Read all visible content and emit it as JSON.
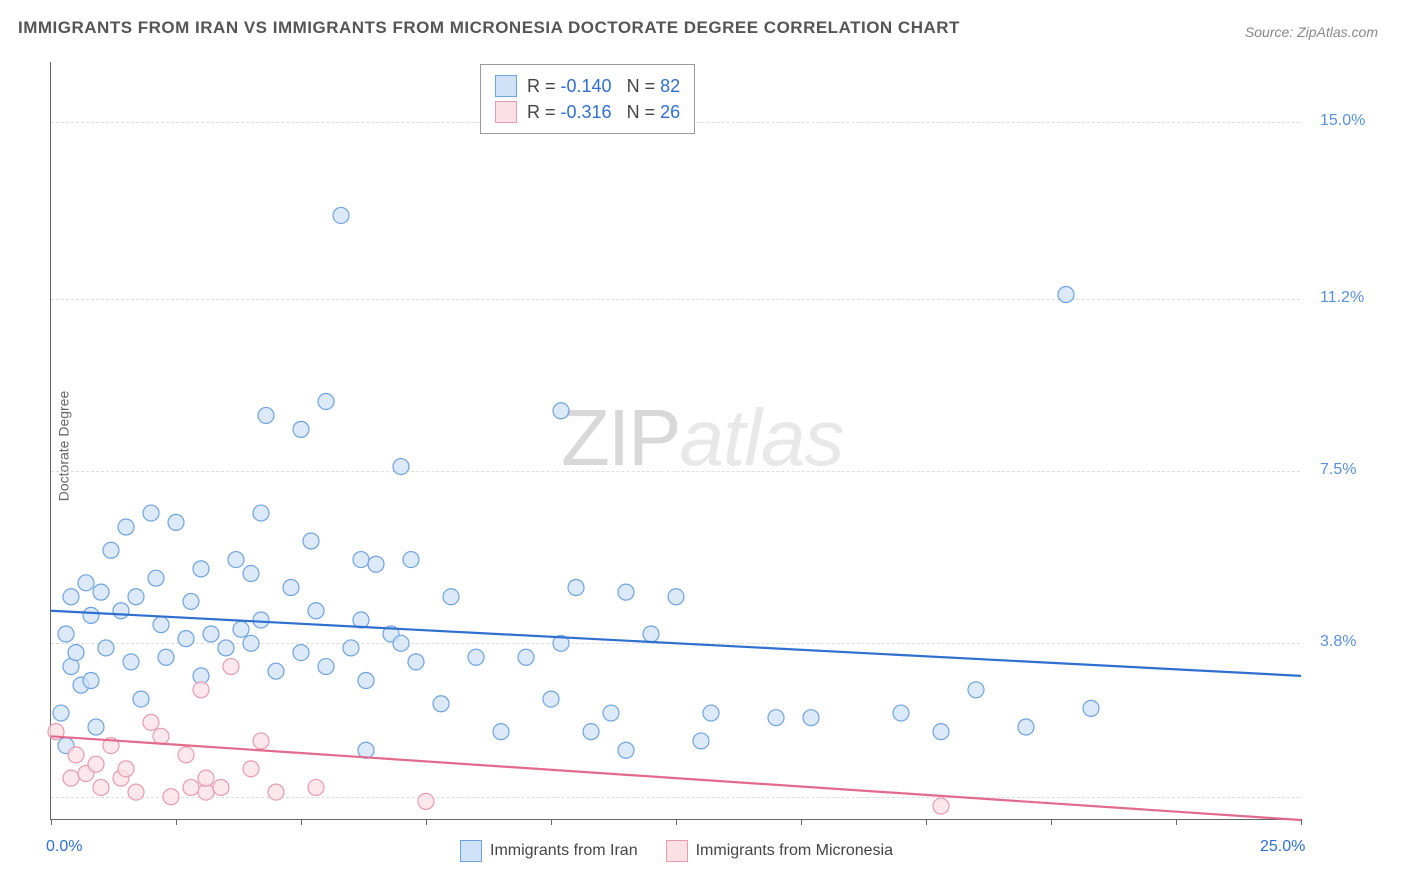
{
  "title": "IMMIGRANTS FROM IRAN VS IMMIGRANTS FROM MICRONESIA DOCTORATE DEGREE CORRELATION CHART",
  "source": "Source: ZipAtlas.com",
  "ylabel": "Doctorate Degree",
  "watermark": {
    "zip": "ZIP",
    "atlas": "atlas"
  },
  "chart": {
    "type": "scatter",
    "xlim": [
      0.0,
      25.0
    ],
    "ylim": [
      0.0,
      16.3
    ],
    "x_axis_labels": [
      {
        "value": 0.0,
        "text": "0.0%",
        "color": "#2f6fd0"
      },
      {
        "value": 25.0,
        "text": "25.0%",
        "color": "#2f6fd0"
      }
    ],
    "y_axis_labels": [
      {
        "value": 3.8,
        "text": "3.8%",
        "color": "#5a8fdc"
      },
      {
        "value": 7.5,
        "text": "7.5%",
        "color": "#5a8fdc"
      },
      {
        "value": 11.2,
        "text": "11.2%",
        "color": "#5a8fdc"
      },
      {
        "value": 15.0,
        "text": "15.0%",
        "color": "#5a8fdc"
      }
    ],
    "y_gridlines": [
      0.5,
      3.8,
      7.5,
      11.2,
      15.0
    ],
    "x_ticks": [
      0.0,
      2.5,
      5.0,
      7.5,
      10.0,
      12.5,
      15.0,
      17.5,
      20.0,
      22.5,
      25.0
    ],
    "background_color": "#ffffff",
    "grid_color": "#dddddd",
    "marker_radius": 8,
    "marker_stroke_width": 1.2,
    "trend_line_width": 2.2,
    "series": [
      {
        "name": "Immigrants from Iran",
        "fill": "#cfe2f7",
        "stroke": "#6fa3e0",
        "line_color": "#2f6fd0",
        "R": "-0.140",
        "N": "82",
        "trend": {
          "x1": 0.0,
          "y1": 4.5,
          "x2": 25.0,
          "y2": 3.1
        },
        "points": [
          [
            0.2,
            2.3
          ],
          [
            0.3,
            1.6
          ],
          [
            0.3,
            4.0
          ],
          [
            0.4,
            3.3
          ],
          [
            0.4,
            4.8
          ],
          [
            0.5,
            3.6
          ],
          [
            0.6,
            2.9
          ],
          [
            0.7,
            5.1
          ],
          [
            0.8,
            4.4
          ],
          [
            0.8,
            3.0
          ],
          [
            0.9,
            2.0
          ],
          [
            1.0,
            4.9
          ],
          [
            1.1,
            3.7
          ],
          [
            1.2,
            5.8
          ],
          [
            1.4,
            4.5
          ],
          [
            1.5,
            6.3
          ],
          [
            1.6,
            3.4
          ],
          [
            1.7,
            4.8
          ],
          [
            1.8,
            2.6
          ],
          [
            2.0,
            6.6
          ],
          [
            2.1,
            5.2
          ],
          [
            2.2,
            4.2
          ],
          [
            2.3,
            3.5
          ],
          [
            2.5,
            6.4
          ],
          [
            2.7,
            3.9
          ],
          [
            2.8,
            4.7
          ],
          [
            3.0,
            5.4
          ],
          [
            3.0,
            3.1
          ],
          [
            3.2,
            4.0
          ],
          [
            3.5,
            3.7
          ],
          [
            3.7,
            5.6
          ],
          [
            3.8,
            4.1
          ],
          [
            4.0,
            3.8
          ],
          [
            4.0,
            5.3
          ],
          [
            4.2,
            4.3
          ],
          [
            4.2,
            6.6
          ],
          [
            4.3,
            8.7
          ],
          [
            4.5,
            3.2
          ],
          [
            4.8,
            5.0
          ],
          [
            5.0,
            8.4
          ],
          [
            5.0,
            3.6
          ],
          [
            5.2,
            6.0
          ],
          [
            5.3,
            4.5
          ],
          [
            5.5,
            9.0
          ],
          [
            5.5,
            3.3
          ],
          [
            5.8,
            13.0
          ],
          [
            6.0,
            3.7
          ],
          [
            6.2,
            4.3
          ],
          [
            6.2,
            5.6
          ],
          [
            6.3,
            3.0
          ],
          [
            6.3,
            1.5
          ],
          [
            6.5,
            5.5
          ],
          [
            6.8,
            4.0
          ],
          [
            7.0,
            7.6
          ],
          [
            7.0,
            3.8
          ],
          [
            7.2,
            5.6
          ],
          [
            7.3,
            3.4
          ],
          [
            7.8,
            2.5
          ],
          [
            8.0,
            4.8
          ],
          [
            8.5,
            3.5
          ],
          [
            9.0,
            1.9
          ],
          [
            9.5,
            3.5
          ],
          [
            10.0,
            2.6
          ],
          [
            10.2,
            3.8
          ],
          [
            10.2,
            8.8
          ],
          [
            10.5,
            5.0
          ],
          [
            10.8,
            1.9
          ],
          [
            11.2,
            2.3
          ],
          [
            11.5,
            1.5
          ],
          [
            11.5,
            4.9
          ],
          [
            12.0,
            4.0
          ],
          [
            12.5,
            4.8
          ],
          [
            13.0,
            1.7
          ],
          [
            13.2,
            2.3
          ],
          [
            14.5,
            2.2
          ],
          [
            15.2,
            2.2
          ],
          [
            17.0,
            2.3
          ],
          [
            17.8,
            1.9
          ],
          [
            18.5,
            2.8
          ],
          [
            19.5,
            2.0
          ],
          [
            20.3,
            11.3
          ],
          [
            20.8,
            2.4
          ]
        ]
      },
      {
        "name": "Immigrants from Micronesia",
        "fill": "#fbe0e6",
        "stroke": "#e89ab0",
        "line_color": "#e26a8b",
        "R": "-0.316",
        "N": "26",
        "trend": {
          "x1": 0.0,
          "y1": 1.8,
          "x2": 25.0,
          "y2": 0.0
        },
        "points": [
          [
            0.1,
            1.9
          ],
          [
            0.4,
            0.9
          ],
          [
            0.5,
            1.4
          ],
          [
            0.7,
            1.0
          ],
          [
            0.9,
            1.2
          ],
          [
            1.0,
            0.7
          ],
          [
            1.2,
            1.6
          ],
          [
            1.4,
            0.9
          ],
          [
            1.5,
            1.1
          ],
          [
            1.7,
            0.6
          ],
          [
            2.0,
            2.1
          ],
          [
            2.2,
            1.8
          ],
          [
            2.4,
            0.5
          ],
          [
            2.7,
            1.4
          ],
          [
            2.8,
            0.7
          ],
          [
            3.0,
            2.8
          ],
          [
            3.1,
            0.6
          ],
          [
            3.1,
            0.9
          ],
          [
            3.4,
            0.7
          ],
          [
            3.6,
            3.3
          ],
          [
            4.0,
            1.1
          ],
          [
            4.2,
            1.7
          ],
          [
            4.5,
            0.6
          ],
          [
            5.3,
            0.7
          ],
          [
            7.5,
            0.4
          ],
          [
            17.8,
            0.3
          ]
        ]
      }
    ]
  },
  "legend_top": {
    "stat_color": "#2f6fd0"
  },
  "legend_bottom": {
    "items": [
      {
        "series": 0
      },
      {
        "series": 1
      }
    ]
  }
}
